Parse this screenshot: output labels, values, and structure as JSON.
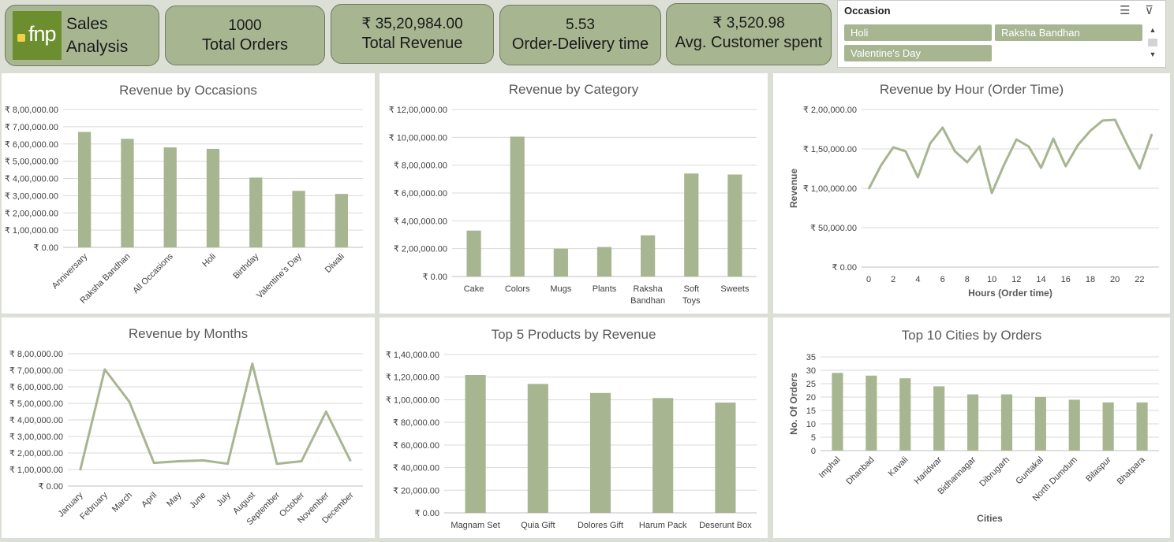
{
  "brand": {
    "logo_text": "fnp",
    "title_line1": "Sales",
    "title_line2": "Analysis"
  },
  "kpis": [
    {
      "value": "1000",
      "label": "Total Orders"
    },
    {
      "value": "₹ 35,20,984.00",
      "label": "Total Revenue"
    },
    {
      "value": "5.53",
      "label": "Order-Delivery time"
    },
    {
      "value": "₹ 3,520.98",
      "label": "Avg. Customer spent"
    }
  ],
  "slicer": {
    "title": "Occasion",
    "items": [
      "Holi",
      "Raksha Bandhan",
      "Valentine's Day"
    ],
    "scroll_up": "▲",
    "scroll_down": "▼"
  },
  "colors": {
    "bar": "#a7b591",
    "line": "#a7b591",
    "grid": "#d9d9d9"
  },
  "chart_data": [
    {
      "id": "occasions",
      "type": "bar",
      "title": "Revenue by Occasions",
      "categories": [
        "Anniversary",
        "Raksha Bandhan",
        "All Occasions",
        "Holi",
        "Birthday",
        "Valentine's Day",
        "Diwali"
      ],
      "values": [
        670000,
        630000,
        580000,
        572000,
        405000,
        328000,
        310000
      ],
      "ylim": [
        0,
        800000
      ],
      "yticks": [
        "₹ 0.00",
        "₹ 1,00,000.00",
        "₹ 2,00,000.00",
        "₹ 3,00,000.00",
        "₹ 4,00,000.00",
        "₹ 5,00,000.00",
        "₹ 6,00,000.00",
        "₹ 7,00,000.00",
        "₹ 8,00,000.00"
      ],
      "xlabel": "",
      "ylabel": "",
      "grid": true
    },
    {
      "id": "category",
      "type": "bar",
      "title": "Revenue by Category",
      "categories": [
        "Cake",
        "Colors",
        "Mugs",
        "Plants",
        "Raksha Bandhan",
        "Soft Toys",
        "Sweets"
      ],
      "values": [
        330000,
        1005000,
        200000,
        212000,
        296000,
        740000,
        733000
      ],
      "ylim": [
        0,
        1200000
      ],
      "yticks": [
        "₹ 0.00",
        "₹ 2,00,000.00",
        "₹ 4,00,000.00",
        "₹ 6,00,000.00",
        "₹ 8,00,000.00",
        "₹ 10,00,000.00",
        "₹ 12,00,000.00"
      ],
      "xlabel": "",
      "ylabel": "",
      "grid": true
    },
    {
      "id": "hour",
      "type": "line",
      "title": "Revenue by Hour (Order Time)",
      "x": [
        0,
        1,
        2,
        3,
        4,
        5,
        6,
        7,
        8,
        9,
        10,
        11,
        12,
        13,
        14,
        15,
        16,
        17,
        18,
        19,
        20,
        21,
        22,
        23
      ],
      "values": [
        99000,
        129000,
        152000,
        147000,
        114000,
        157000,
        177000,
        147000,
        133000,
        153000,
        94000,
        130000,
        162000,
        153000,
        126000,
        163000,
        128000,
        155000,
        173000,
        186000,
        187000,
        155000,
        125000,
        169000
      ],
      "ylim": [
        0,
        200000
      ],
      "yticks": [
        "₹ 0.00",
        "₹ 50,000.00",
        "₹ 1,00,000.00",
        "₹ 1,50,000.00",
        "₹ 2,00,000.00"
      ],
      "xticks": [
        "0",
        "2",
        "4",
        "6",
        "8",
        "10",
        "12",
        "14",
        "16",
        "18",
        "20",
        "22"
      ],
      "xlabel": "Hours (Order time)",
      "ylabel": "Revenue",
      "grid": true
    },
    {
      "id": "months",
      "type": "line",
      "title": "Revenue by Months",
      "categories": [
        "January",
        "February",
        "March",
        "April",
        "May",
        "June",
        "July",
        "August",
        "September",
        "October",
        "November",
        "December"
      ],
      "values": [
        95000,
        705000,
        510000,
        140000,
        150000,
        155000,
        135000,
        740000,
        135000,
        150000,
        450000,
        150000
      ],
      "ylim": [
        0,
        800000
      ],
      "yticks": [
        "₹ 0.00",
        "₹ 1,00,000.00",
        "₹ 2,00,000.00",
        "₹ 3,00,000.00",
        "₹ 4,00,000.00",
        "₹ 5,00,000.00",
        "₹ 6,00,000.00",
        "₹ 7,00,000.00",
        "₹ 8,00,000.00"
      ],
      "xlabel": "",
      "ylabel": "",
      "grid": true
    },
    {
      "id": "products",
      "type": "bar",
      "title": "Top 5 Products by Revenue",
      "categories": [
        "Magnam Set",
        "Quia Gift",
        "Dolores Gift",
        "Harum Pack",
        "Deserunt Box"
      ],
      "values": [
        121900,
        114000,
        106000,
        101500,
        97500
      ],
      "ylim": [
        0,
        140000
      ],
      "yticks": [
        "₹ 0.00",
        "₹ 20,000.00",
        "₹ 40,000.00",
        "₹ 60,000.00",
        "₹ 80,000.00",
        "₹ 1,00,000.00",
        "₹ 1,20,000.00",
        "₹ 1,40,000.00"
      ],
      "xlabel": "",
      "ylabel": "",
      "grid": true
    },
    {
      "id": "cities",
      "type": "bar",
      "title": "Top 10 Cities by Orders",
      "categories": [
        "Imphal",
        "Dhanbad",
        "Kavali",
        "Haridwar",
        "Bidhannagar",
        "Dibrugarh",
        "Guntakal",
        "North Dumdum",
        "Bilaspur",
        "Bhatpara"
      ],
      "values": [
        29,
        28,
        27,
        24,
        21,
        21,
        20,
        19,
        18,
        18
      ],
      "ylim": [
        0,
        35
      ],
      "yticks": [
        "0",
        "5",
        "10",
        "15",
        "20",
        "25",
        "30",
        "35"
      ],
      "xlabel": "Cities",
      "ylabel": "No. Of Orders",
      "grid": true
    }
  ]
}
